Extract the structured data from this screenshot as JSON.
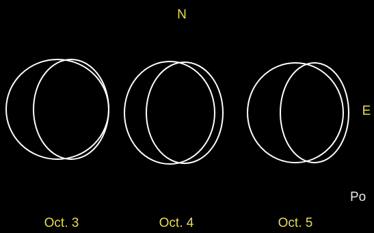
{
  "labels": {
    "north": "N",
    "east": "E",
    "cutoff": "Po"
  },
  "panels": [
    {
      "date": "Oct. 3"
    },
    {
      "date": "Oct. 4"
    },
    {
      "date": "Oct. 5"
    }
  ]
}
